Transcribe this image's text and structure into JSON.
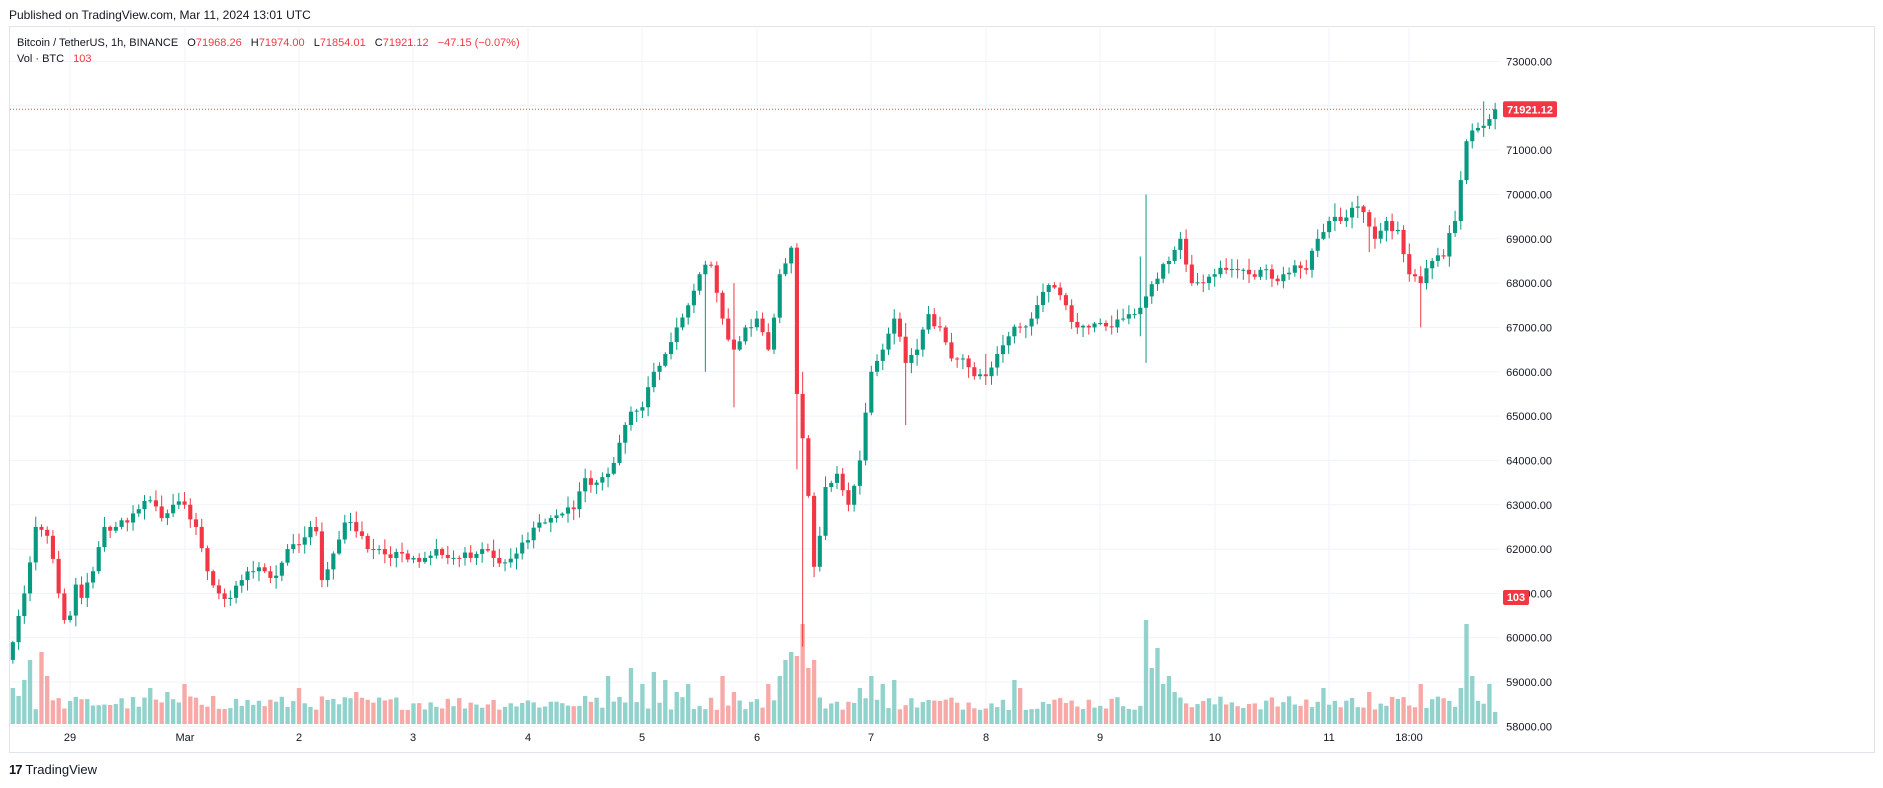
{
  "header": {
    "published": "Published on TradingView.com, Mar 11, 2024 13:01 UTC"
  },
  "legend": {
    "symbol": "Bitcoin / TetherUS, 1h, BINANCE",
    "o_label": "O",
    "o": "71968.26",
    "h_label": "H",
    "h": "71974.00",
    "l_label": "L",
    "l": "71854.01",
    "c_label": "C",
    "c": "71921.12",
    "change": "−47.15 (−0.07%)",
    "vol_label": "Vol · BTC",
    "vol": "103"
  },
  "footer": {
    "logo": "17",
    "brand": "TradingView"
  },
  "colors": {
    "up": "#089981",
    "down": "#f23645",
    "up_vol": "#92d2cc",
    "down_vol": "#f7a9a7",
    "grid": "#f0f3fa"
  },
  "chart_data": {
    "type": "candlestick",
    "interval": "1h",
    "y_ticks": [
      "73000.00",
      "72000.00",
      "71000.00",
      "70000.00",
      "69000.00",
      "68000.00",
      "67000.00",
      "66000.00",
      "65000.00",
      "64000.00",
      "63000.00",
      "62000.00",
      "61000.00",
      "60000.00",
      "59000.00",
      "58000.00"
    ],
    "ylim": [
      57400,
      73800
    ],
    "x_ticks": [
      "29",
      "Mar",
      "2",
      "3",
      "4",
      "5",
      "6",
      "7",
      "8",
      "9",
      "10",
      "11",
      "18:00"
    ],
    "last_price_label": "71921.12",
    "last_volume_label": "103",
    "price_anchors": [
      [
        0,
        59900
      ],
      [
        2,
        61000
      ],
      [
        4,
        62500
      ],
      [
        6,
        62300
      ],
      [
        8,
        61000
      ],
      [
        9,
        60400
      ],
      [
        10,
        60500
      ],
      [
        11,
        61200
      ],
      [
        12,
        60900
      ],
      [
        14,
        61500
      ],
      [
        16,
        62500
      ],
      [
        18,
        62500
      ],
      [
        20,
        62600
      ],
      [
        22,
        62900
      ],
      [
        24,
        63100
      ],
      [
        26,
        62700
      ],
      [
        28,
        63000
      ],
      [
        30,
        63000
      ],
      [
        32,
        62500
      ],
      [
        34,
        61500
      ],
      [
        36,
        61000
      ],
      [
        38,
        60900
      ],
      [
        40,
        61300
      ],
      [
        42,
        61500
      ],
      [
        44,
        61500
      ],
      [
        46,
        61400
      ],
      [
        48,
        62000
      ],
      [
        50,
        62100
      ],
      [
        52,
        62500
      ],
      [
        53,
        62400
      ],
      [
        54,
        61300
      ],
      [
        56,
        61900
      ],
      [
        58,
        62600
      ],
      [
        60,
        62400
      ],
      [
        62,
        62000
      ],
      [
        64,
        62000
      ],
      [
        66,
        61800
      ],
      [
        68,
        61900
      ],
      [
        70,
        61800
      ],
      [
        72,
        61800
      ],
      [
        74,
        62000
      ],
      [
        76,
        61800
      ],
      [
        78,
        61800
      ],
      [
        80,
        61800
      ],
      [
        82,
        62000
      ],
      [
        84,
        61800
      ],
      [
        86,
        61700
      ],
      [
        88,
        61900
      ],
      [
        90,
        62200
      ],
      [
        92,
        62600
      ],
      [
        94,
        62700
      ],
      [
        96,
        62800
      ],
      [
        98,
        62900
      ],
      [
        100,
        63600
      ],
      [
        102,
        63500
      ],
      [
        104,
        63700
      ],
      [
        106,
        64400
      ],
      [
        108,
        65100
      ],
      [
        110,
        65200
      ],
      [
        112,
        66000
      ],
      [
        114,
        66400
      ],
      [
        116,
        67000
      ],
      [
        118,
        67500
      ],
      [
        120,
        68200
      ],
      [
        122,
        68400
      ],
      [
        124,
        67200
      ],
      [
        126,
        66500
      ],
      [
        128,
        67000
      ],
      [
        130,
        67200
      ],
      [
        132,
        66500
      ],
      [
        134,
        68200
      ],
      [
        136,
        68800
      ],
      [
        137,
        65500
      ],
      [
        138,
        64500
      ],
      [
        139,
        63200
      ],
      [
        140,
        61600
      ],
      [
        141,
        62300
      ],
      [
        142,
        63400
      ],
      [
        144,
        63700
      ],
      [
        146,
        63000
      ],
      [
        148,
        64000
      ],
      [
        150,
        66000
      ],
      [
        152,
        66500
      ],
      [
        154,
        67200
      ],
      [
        156,
        66200
      ],
      [
        158,
        66500
      ],
      [
        160,
        67300
      ],
      [
        162,
        67000
      ],
      [
        164,
        66300
      ],
      [
        166,
        66300
      ],
      [
        168,
        65900
      ],
      [
        170,
        65900
      ],
      [
        172,
        66400
      ],
      [
        174,
        66800
      ],
      [
        176,
        67000
      ],
      [
        178,
        67200
      ],
      [
        180,
        67800
      ],
      [
        182,
        67900
      ],
      [
        184,
        67500
      ],
      [
        186,
        67000
      ],
      [
        188,
        67000
      ],
      [
        190,
        67100
      ],
      [
        192,
        67000
      ],
      [
        194,
        67200
      ],
      [
        196,
        67300
      ],
      [
        198,
        67700
      ],
      [
        200,
        68100
      ],
      [
        202,
        68500
      ],
      [
        204,
        69000
      ],
      [
        206,
        68000
      ],
      [
        208,
        68000
      ],
      [
        210,
        68200
      ],
      [
        212,
        68300
      ],
      [
        214,
        68300
      ],
      [
        216,
        68200
      ],
      [
        218,
        68300
      ],
      [
        220,
        68100
      ],
      [
        222,
        68200
      ],
      [
        224,
        68400
      ],
      [
        226,
        68300
      ],
      [
        228,
        69000
      ],
      [
        230,
        69400
      ],
      [
        232,
        69400
      ],
      [
        234,
        69700
      ],
      [
        236,
        69600
      ],
      [
        238,
        69000
      ],
      [
        240,
        69400
      ],
      [
        242,
        69200
      ],
      [
        244,
        68200
      ],
      [
        246,
        68000
      ],
      [
        248,
        68500
      ],
      [
        250,
        68600
      ],
      [
        252,
        69400
      ],
      [
        254,
        71200
      ],
      [
        256,
        71500
      ],
      [
        258,
        71700
      ],
      [
        259,
        71921
      ]
    ],
    "wick_outliers": [
      [
        5,
        61800,
        64000
      ],
      [
        121,
        68500,
        66000
      ],
      [
        126,
        68000,
        65200
      ],
      [
        137,
        68900,
        63800
      ],
      [
        138,
        66000,
        59800
      ],
      [
        156,
        67100,
        64800
      ],
      [
        170,
        66400,
        65700
      ],
      [
        197,
        68600,
        66800
      ],
      [
        198,
        70000,
        66200
      ],
      [
        231,
        69800,
        69200
      ],
      [
        237,
        69200,
        68700
      ],
      [
        246,
        68300,
        67000
      ],
      [
        257,
        72100,
        71300
      ]
    ],
    "volume_spikes": [
      [
        0,
        9
      ],
      [
        1,
        7
      ],
      [
        2,
        11
      ],
      [
        3,
        16
      ],
      [
        5,
        18
      ],
      [
        6,
        12
      ],
      [
        24,
        9
      ],
      [
        27,
        8
      ],
      [
        30,
        10
      ],
      [
        35,
        7
      ],
      [
        50,
        9
      ],
      [
        60,
        8
      ],
      [
        100,
        7
      ],
      [
        104,
        12
      ],
      [
        108,
        14
      ],
      [
        110,
        10
      ],
      [
        112,
        13
      ],
      [
        114,
        11
      ],
      [
        116,
        8
      ],
      [
        118,
        10
      ],
      [
        124,
        12
      ],
      [
        126,
        8
      ],
      [
        132,
        10
      ],
      [
        134,
        12
      ],
      [
        135,
        16
      ],
      [
        136,
        18
      ],
      [
        137,
        17
      ],
      [
        138,
        25
      ],
      [
        139,
        14
      ],
      [
        140,
        16
      ],
      [
        148,
        9
      ],
      [
        150,
        12
      ],
      [
        152,
        10
      ],
      [
        154,
        11
      ],
      [
        175,
        11
      ],
      [
        176,
        9
      ],
      [
        198,
        26
      ],
      [
        199,
        14
      ],
      [
        200,
        19
      ],
      [
        201,
        10
      ],
      [
        202,
        12
      ],
      [
        203,
        8
      ],
      [
        229,
        9
      ],
      [
        237,
        8
      ],
      [
        246,
        10
      ],
      [
        253,
        9
      ],
      [
        254,
        25
      ],
      [
        255,
        12
      ],
      [
        258,
        10
      ],
      [
        259,
        3
      ]
    ],
    "volume_base": 3.5,
    "volume_max": 26
  }
}
